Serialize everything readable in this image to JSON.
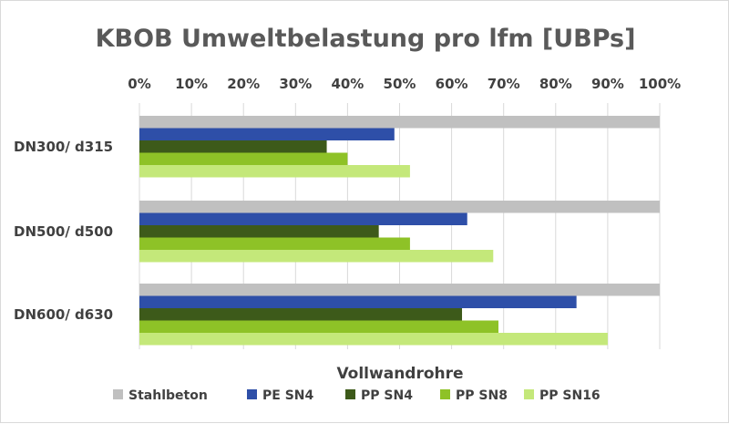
{
  "chart_data": {
    "type": "bar",
    "orientation": "horizontal",
    "title": "KBOB Umweltbelastung pro lfm [UBPs]",
    "xlabel": "Vollwandrohre",
    "ylabel": "",
    "xlim": [
      0,
      100
    ],
    "x_ticks": [
      "0%",
      "10%",
      "20%",
      "30%",
      "40%",
      "50%",
      "60%",
      "70%",
      "80%",
      "90%",
      "100%"
    ],
    "x_axis_position": "top",
    "categories": [
      "DN300/ d315",
      "DN500/ d500",
      "DN600/ d630"
    ],
    "series": [
      {
        "name": "Stahlbeton",
        "color": "#c0c0c0",
        "values": [
          100,
          100,
          100
        ]
      },
      {
        "name": "PE SN4",
        "color": "#2e4fa8",
        "values": [
          49,
          63,
          84
        ]
      },
      {
        "name": "PP SN4",
        "color": "#3d5a1a",
        "values": [
          36,
          46,
          62
        ]
      },
      {
        "name": "PP SN8",
        "color": "#8ec227",
        "values": [
          40,
          52,
          69
        ]
      },
      {
        "name": "PP SN16",
        "color": "#c4e87a",
        "values": [
          52,
          68,
          90
        ]
      }
    ],
    "grid": true,
    "legend_position": "bottom"
  }
}
